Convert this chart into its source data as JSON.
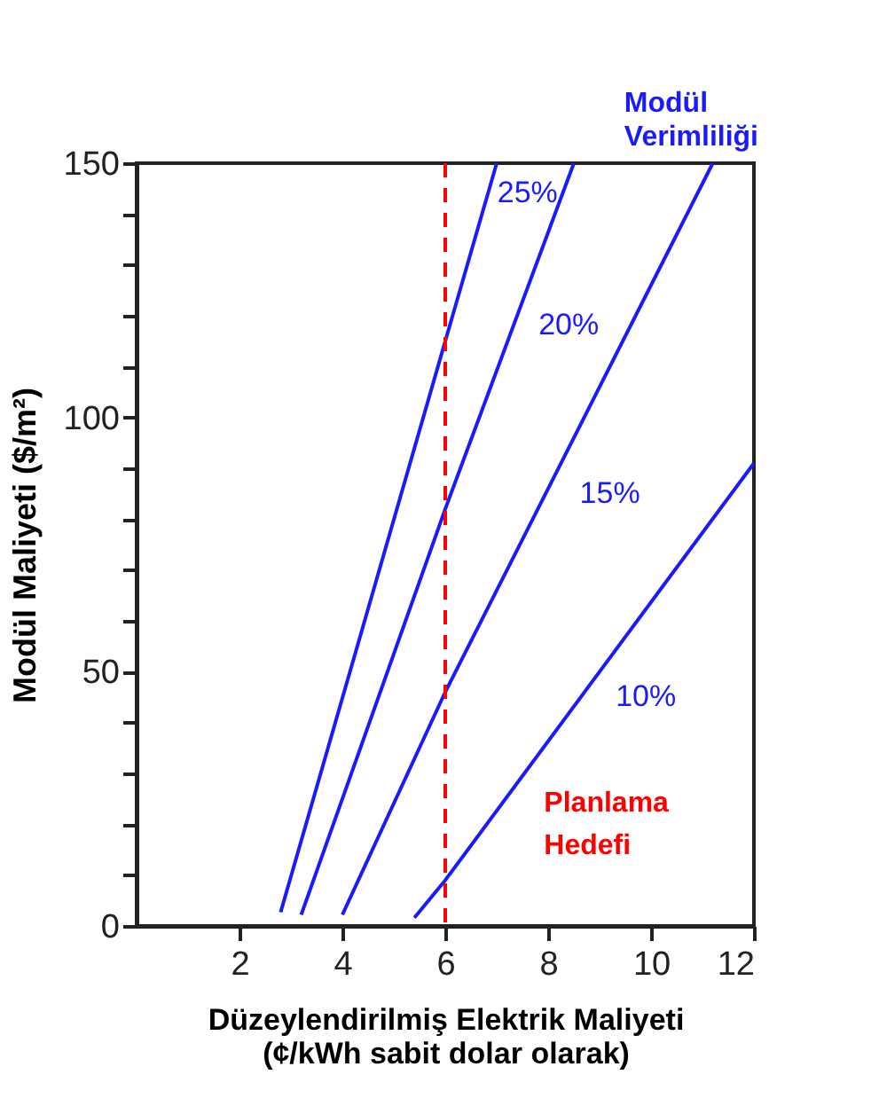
{
  "chart_data": {
    "type": "line",
    "legend_title": "Modül\nVerimliliği",
    "xlabel": "Düzeylendirilmiş Elektrik Maliyeti\n(¢/kWh sabit dolar olarak)",
    "ylabel": "Modül Maliyeti ($/m²)",
    "xlim": [
      0,
      12
    ],
    "xticks": [
      2,
      4,
      6,
      8,
      10,
      12
    ],
    "ylim": [
      0,
      150
    ],
    "yticks": [
      0,
      {
        "value": 10,
        "label": null
      },
      {
        "value": 20,
        "label": null
      },
      {
        "value": 30,
        "label": null
      },
      {
        "value": 40,
        "label": null
      },
      50,
      {
        "value": 60,
        "label": null
      },
      {
        "value": 70,
        "label": null
      },
      {
        "value": 80,
        "label": null
      },
      {
        "value": 90,
        "label": null
      },
      100,
      {
        "value": 110,
        "label": null
      },
      {
        "value": 120,
        "label": null
      },
      {
        "value": 130,
        "label": null
      },
      {
        "value": 140,
        "label": null
      },
      150
    ],
    "grid": false,
    "marker": "none",
    "line_style": "solid",
    "series": [
      {
        "name": "25%",
        "color": "#1a1aff",
        "x": [
          2.8,
          6,
          7.0
        ],
        "values": [
          2.7,
          115,
          150
        ]
      },
      {
        "name": "20%",
        "color": "#1a1aff",
        "x": [
          3.2,
          6,
          8.5
        ],
        "values": [
          2.2,
          82,
          150
        ]
      },
      {
        "name": "15%",
        "color": "#1a1aff",
        "x": [
          4.0,
          6,
          11.2
        ],
        "values": [
          2.2,
          46,
          150
        ]
      },
      {
        "name": "10%",
        "color": "#1a1aff",
        "x": [
          5.4,
          6,
          12.0
        ],
        "values": [
          1.6,
          9,
          91
        ]
      }
    ],
    "ref_lines": [
      {
        "axis": "x",
        "value": 6,
        "label": null,
        "color": "#ff0000",
        "line_style": "dashed"
      }
    ],
    "annotations": [
      "Planlama\nHedefi"
    ]
  }
}
